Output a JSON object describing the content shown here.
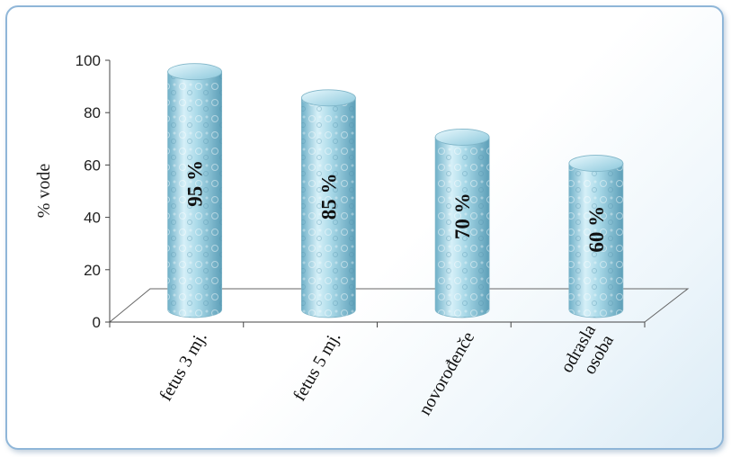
{
  "chart_data": {
    "type": "bar",
    "style": "3d-cylinder",
    "categories": [
      [
        "fetus 3 mj."
      ],
      [
        "fetus 5 mj."
      ],
      [
        "novorođenče"
      ],
      [
        "odrasla",
        "osoba"
      ]
    ],
    "values": [
      95,
      85,
      70,
      60
    ],
    "data_labels": [
      "95 %",
      "85 %",
      "70 %",
      "60 %"
    ],
    "ylabel": "% vode",
    "ylim": [
      0,
      100
    ],
    "yticks": [
      0,
      20,
      40,
      60,
      80,
      100
    ],
    "grid": false,
    "bar_color": "#a8d8e8",
    "frame_color": "#8fb6d8"
  }
}
